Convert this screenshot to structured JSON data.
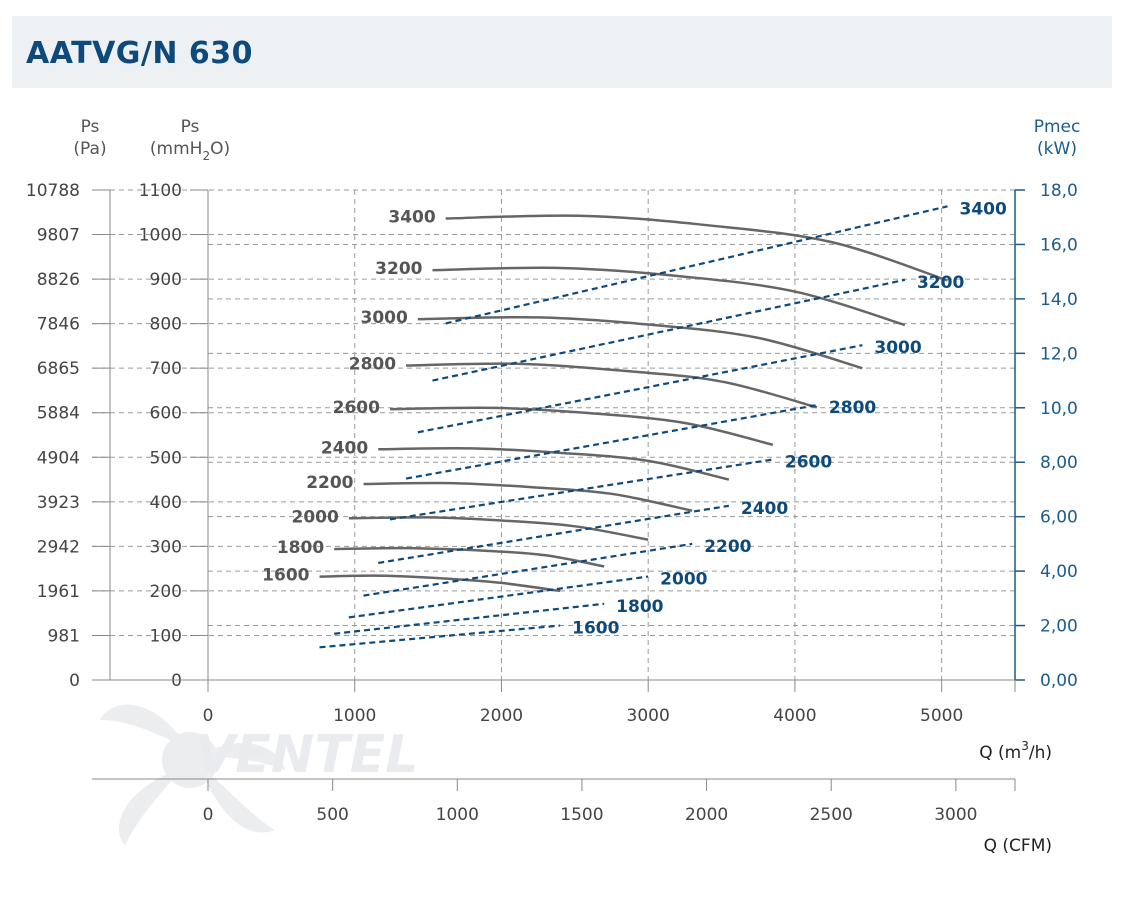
{
  "title": "AATVG/N 630",
  "watermark": "VENTEL",
  "colors": {
    "pressure_curve": "#666666",
    "power_curve": "#0d4a7b",
    "grid": "#9a9a9a",
    "axis_right": "#1a5c8c",
    "title": "#0d4a7b"
  },
  "chart_data": {
    "type": "line",
    "axes": {
      "ps_pa": {
        "label": "Ps",
        "unit": "(Pa)",
        "ticks": [
          "10788",
          "9807",
          "8826",
          "7846",
          "6865",
          "5884",
          "4904",
          "3923",
          "2942",
          "1961",
          "981",
          "0"
        ]
      },
      "ps_mmh2o": {
        "label": "Ps",
        "unit": "(mmH2O)",
        "range": [
          0,
          1100
        ],
        "ticks": [
          1100,
          1000,
          900,
          800,
          700,
          600,
          500,
          400,
          300,
          200,
          100,
          0
        ]
      },
      "pmec": {
        "label": "Pmec",
        "unit": "(kW)",
        "range": [
          0,
          18
        ],
        "ticks": [
          "18,0",
          "16,0",
          "14,0",
          "12,0",
          "10,0",
          "8,00",
          "6,00",
          "4,00",
          "2,00",
          "0,00"
        ]
      },
      "q_m3h": {
        "label": "Q (m3/h)",
        "range": [
          0,
          5500
        ],
        "ticks": [
          0,
          1000,
          2000,
          3000,
          4000,
          5000
        ]
      },
      "q_cfm": {
        "label": "Q (CFM)",
        "ticks": [
          0,
          500,
          1000,
          1500,
          2000,
          2500,
          3000
        ]
      }
    },
    "pressure_series": [
      {
        "name": "1600",
        "q": [
          760,
          1200,
          1700,
          2000,
          2400
        ],
        "ps": [
          232,
          234,
          226,
          218,
          200
        ]
      },
      {
        "name": "1800",
        "q": [
          860,
          1350,
          1900,
          2300,
          2700
        ],
        "ps": [
          294,
          296,
          290,
          280,
          255
        ]
      },
      {
        "name": "2000",
        "q": [
          960,
          1500,
          2000,
          2500,
          3000
        ],
        "ps": [
          363,
          365,
          358,
          345,
          315
        ]
      },
      {
        "name": "2200",
        "q": [
          1060,
          1650,
          2200,
          2750,
          3300
        ],
        "ps": [
          440,
          442,
          433,
          418,
          380
        ]
      },
      {
        "name": "2400",
        "q": [
          1160,
          1800,
          2400,
          3000,
          3550
        ],
        "ps": [
          518,
          520,
          510,
          492,
          450
        ]
      },
      {
        "name": "2600",
        "q": [
          1240,
          1950,
          2600,
          3250,
          3850
        ],
        "ps": [
          608,
          611,
          599,
          577,
          528
        ]
      },
      {
        "name": "2800",
        "q": [
          1350,
          2100,
          2800,
          3500,
          4150
        ],
        "ps": [
          706,
          710,
          695,
          670,
          612
        ]
      },
      {
        "name": "3000",
        "q": [
          1430,
          2250,
          3000,
          3750,
          4460
        ],
        "ps": [
          810,
          814,
          798,
          768,
          700
        ]
      },
      {
        "name": "3200",
        "q": [
          1530,
          2400,
          3200,
          4000,
          4750
        ],
        "ps": [
          920,
          925,
          907,
          872,
          797
        ]
      },
      {
        "name": "3400",
        "q": [
          1620,
          2550,
          3400,
          4250,
          5040
        ],
        "ps": [
          1036,
          1042,
          1021,
          983,
          897
        ]
      }
    ],
    "power_series": [
      {
        "name": "1600",
        "q": [
          760,
          2400
        ],
        "pmec": [
          1.2,
          2.0
        ]
      },
      {
        "name": "1800",
        "q": [
          860,
          2700
        ],
        "pmec": [
          1.7,
          2.8
        ]
      },
      {
        "name": "2000",
        "q": [
          960,
          3000
        ],
        "pmec": [
          2.3,
          3.8
        ]
      },
      {
        "name": "2200",
        "q": [
          1060,
          3300
        ],
        "pmec": [
          3.1,
          5.0
        ]
      },
      {
        "name": "2400",
        "q": [
          1160,
          3550
        ],
        "pmec": [
          4.3,
          6.4
        ]
      },
      {
        "name": "2600",
        "q": [
          1240,
          3850
        ],
        "pmec": [
          5.9,
          8.1
        ]
      },
      {
        "name": "2800",
        "q": [
          1350,
          4150
        ],
        "pmec": [
          7.4,
          10.1
        ]
      },
      {
        "name": "3000",
        "q": [
          1430,
          4460
        ],
        "pmec": [
          9.1,
          12.3
        ]
      },
      {
        "name": "3200",
        "q": [
          1530,
          4750
        ],
        "pmec": [
          11.0,
          14.7
        ]
      },
      {
        "name": "3400",
        "q": [
          1620,
          5040
        ],
        "pmec": [
          13.1,
          17.4
        ]
      }
    ]
  }
}
